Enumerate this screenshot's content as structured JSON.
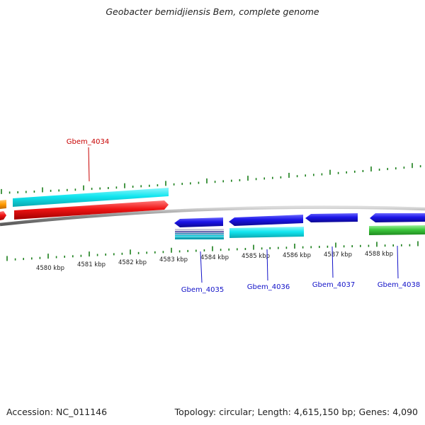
{
  "title": "Geobacter bemidjiensis Bem, complete genome",
  "accession": "Accession: NC_011146",
  "topology": "Topology: circular; Length: 4,615,150 bp; Genes: 4,090",
  "colors": {
    "backbone": "#8c8c8c",
    "tick": "#1a7f1a",
    "label_blue": "#1212c8",
    "label_red": "#c80000",
    "cyan": "#12e6f0",
    "red": "#f01414",
    "blue": "#1a14e6",
    "green": "#3cc83c",
    "orange": "#ff9a00"
  },
  "scale_labels": [
    "4580 kbp",
    "4581 kbp",
    "4582 kbp",
    "4583 kbp",
    "4584 kbp",
    "4585 kbp",
    "4586 kbp",
    "4587 kbp",
    "4588 kbp"
  ],
  "gene_labels": [
    {
      "name": "Gbem_4034",
      "strand": "forward"
    },
    {
      "name": "Gbem_4035",
      "strand": "reverse"
    },
    {
      "name": "Gbem_4036",
      "strand": "reverse"
    },
    {
      "name": "Gbem_4037",
      "strand": "reverse"
    },
    {
      "name": "Gbem_4038",
      "strand": "reverse"
    }
  ]
}
